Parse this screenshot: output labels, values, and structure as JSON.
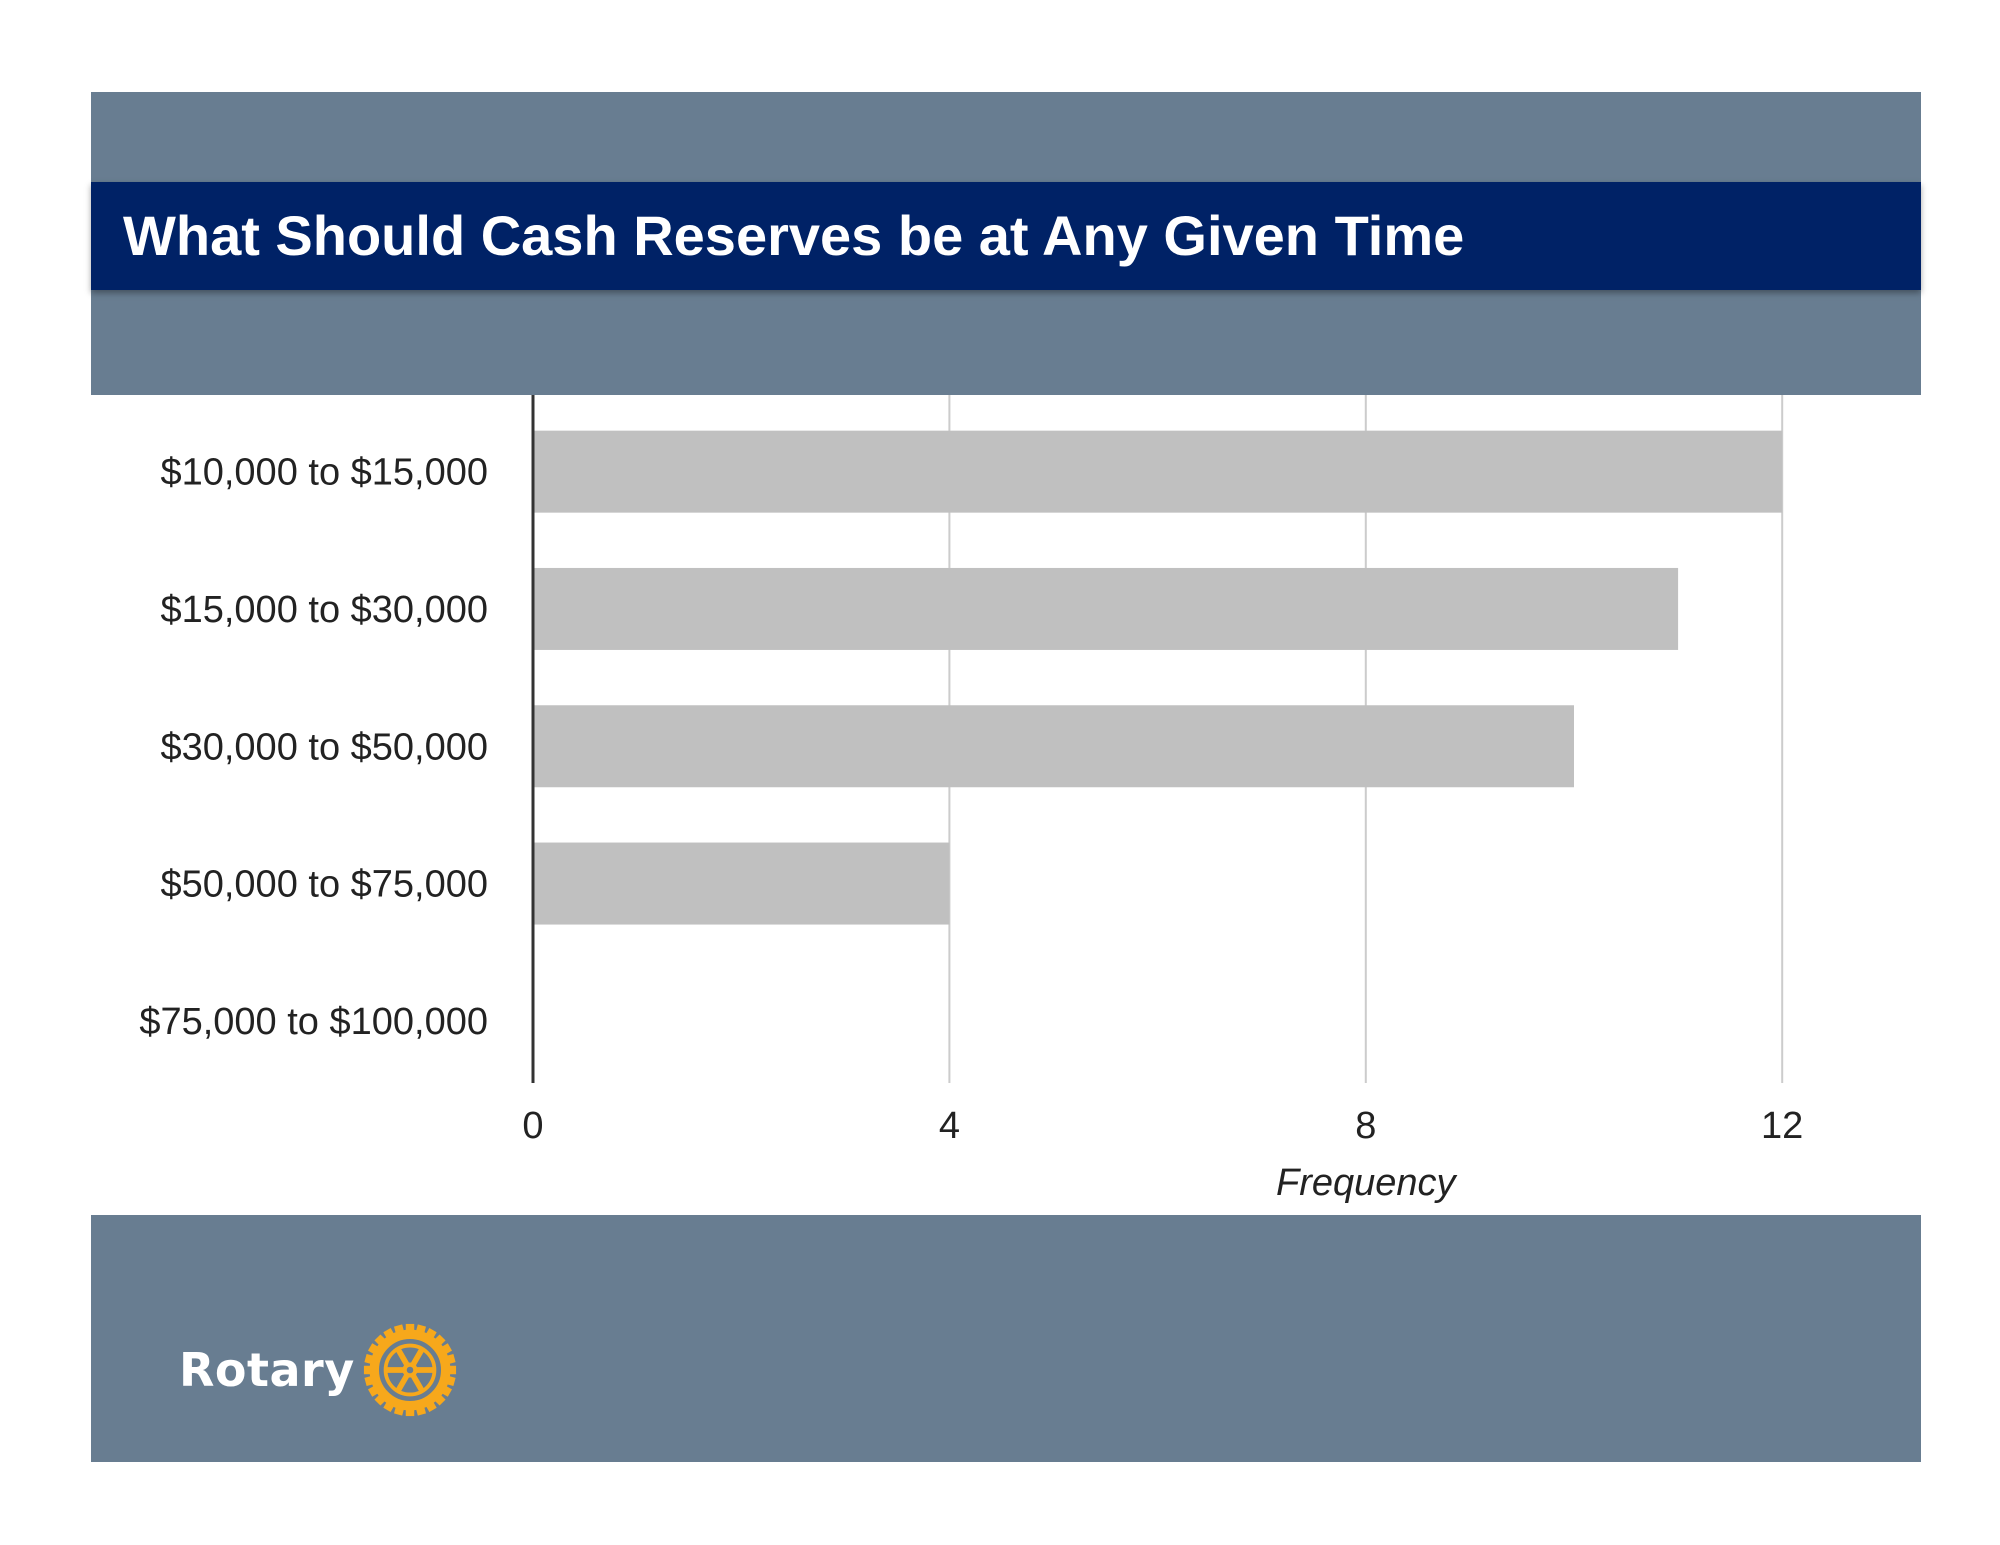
{
  "slide": {
    "title": "What Should Cash Reserves  be at Any Given Time",
    "logo_text": "Rotary"
  },
  "colors": {
    "frame": "#687d91",
    "title_bar": "#002266",
    "bar": "#c0c0c0",
    "grid": "#cccccc",
    "axis": "#333333",
    "logo_gold": "#f7a81b"
  },
  "chart_data": {
    "type": "bar",
    "orientation": "horizontal",
    "categories": [
      "$10,000 to $15,000",
      "$15,000 to $30,000",
      "$30,000 to $50,000",
      "$50,000 to $75,000",
      "$75,000 to $100,000"
    ],
    "values": [
      12,
      11,
      10,
      4,
      0
    ],
    "xlabel": "Frequency",
    "ylabel": "",
    "xlim": [
      0,
      13
    ],
    "xticks": [
      0,
      4,
      8,
      12
    ],
    "grid": true,
    "legend": "none"
  }
}
